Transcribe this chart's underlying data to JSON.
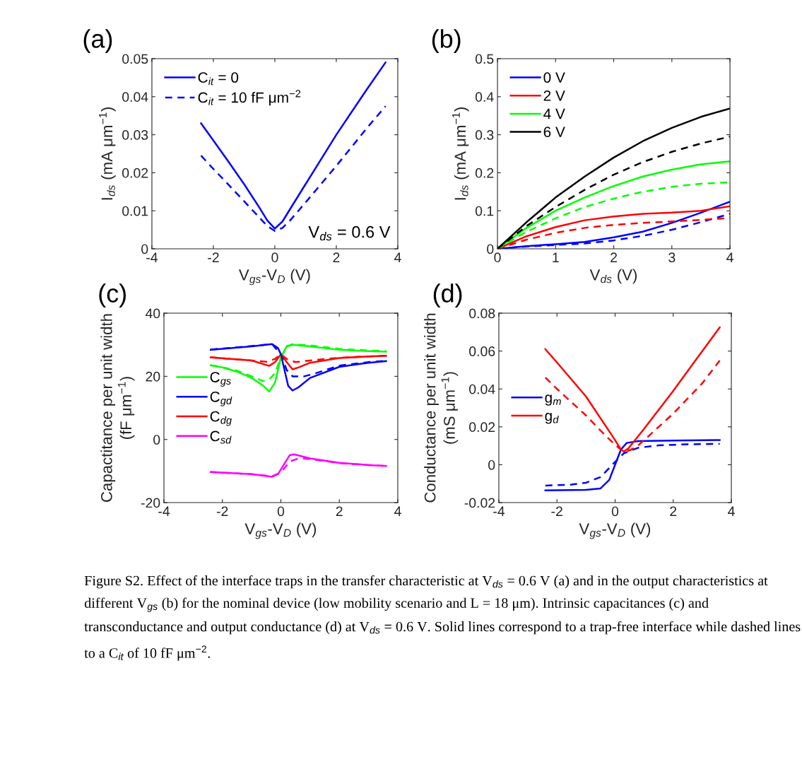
{
  "chart_data": [
    {
      "type": "line",
      "title": "(a)",
      "xlabel": "V$_{gs}$-V$_{D}$ (V)",
      "ylabel": "I$_{ds}$ (mA μm$^{−1}$)",
      "xlim": [
        -4,
        4
      ],
      "xticks": [
        -4,
        -2,
        0,
        2,
        4
      ],
      "ylim": [
        0,
        0.05
      ],
      "yticks": [
        0,
        0.01,
        0.02,
        0.03,
        0.04,
        0.05
      ],
      "legend": "top left",
      "grid": false,
      "annotations": [
        "V$_{ds}$ = 0.6 V"
      ],
      "x": [
        -2.4,
        -2,
        -1.5,
        -1,
        -0.5,
        -0.25,
        0,
        0.25,
        0.5,
        1,
        1.5,
        2,
        2.5,
        3,
        3.6
      ],
      "series": [
        {
          "name": "C$_{it}$ = 0",
          "color": "#0000ff",
          "line_style": "solid",
          "values": [
            0.033,
            0.0285,
            0.0228,
            0.017,
            0.0108,
            0.0075,
            0.0053,
            0.0072,
            0.0105,
            0.017,
            0.0235,
            0.03,
            0.036,
            0.042,
            0.049
          ]
        },
        {
          "name": "C$_{it}$ = 10 fF μm$^{−2}$",
          "color": "#0000ff",
          "line_style": "dashed",
          "values": [
            0.0245,
            0.021,
            0.0168,
            0.0125,
            0.0082,
            0.006,
            0.0047,
            0.0055,
            0.0075,
            0.0122,
            0.017,
            0.0218,
            0.0268,
            0.0318,
            0.0375
          ]
        }
      ]
    },
    {
      "type": "line",
      "title": "(b)",
      "xlabel": "V$_{ds}$ (V)",
      "ylabel": "I$_{ds}$ (mA μm$^{−1}$)",
      "xlim": [
        0,
        4
      ],
      "xticks": [
        0,
        1,
        2,
        3,
        4
      ],
      "ylim": [
        0,
        0.5
      ],
      "yticks": [
        0,
        0.1,
        0.2,
        0.3,
        0.4,
        0.5
      ],
      "legend": "top left",
      "grid": false,
      "x": [
        0,
        0.5,
        1,
        1.5,
        2,
        2.5,
        3,
        3.5,
        4
      ],
      "series": [
        {
          "name": "0 V",
          "color": "#0000ff",
          "line_style": "solid",
          "values": [
            0,
            0.007,
            0.012,
            0.018,
            0.03,
            0.045,
            0.068,
            0.095,
            0.124
          ]
        },
        {
          "name": "2 V",
          "color": "#ff0000",
          "line_style": "solid",
          "values": [
            0,
            0.033,
            0.057,
            0.075,
            0.085,
            0.092,
            0.095,
            0.1,
            0.112
          ]
        },
        {
          "name": "4 V",
          "color": "#00ff00",
          "line_style": "solid",
          "values": [
            0,
            0.055,
            0.1,
            0.135,
            0.165,
            0.19,
            0.208,
            0.222,
            0.23
          ]
        },
        {
          "name": "6 V",
          "color": "#000000",
          "line_style": "solid",
          "values": [
            0,
            0.07,
            0.135,
            0.19,
            0.24,
            0.283,
            0.318,
            0.347,
            0.369
          ]
        },
        {
          "color": "#0000ff",
          "line_style": "dashed",
          "values": [
            0,
            0.006,
            0.01,
            0.014,
            0.022,
            0.034,
            0.05,
            0.07,
            0.092
          ]
        },
        {
          "color": "#ff0000",
          "line_style": "dashed",
          "values": [
            0,
            0.024,
            0.042,
            0.055,
            0.063,
            0.068,
            0.072,
            0.076,
            0.081
          ]
        },
        {
          "color": "#00ff00",
          "line_style": "dashed",
          "values": [
            0,
            0.045,
            0.08,
            0.11,
            0.132,
            0.15,
            0.163,
            0.171,
            0.175
          ]
        },
        {
          "color": "#000000",
          "line_style": "dashed",
          "values": [
            0,
            0.06,
            0.11,
            0.155,
            0.195,
            0.228,
            0.255,
            0.277,
            0.295
          ]
        }
      ]
    },
    {
      "type": "line",
      "title": "(c)",
      "xlabel": "V$_{gs}$-V$_{D}$ (V)",
      "ylabel": "Capactitance per unit width\n(fF μm$^{−1}$)",
      "xlim": [
        -4,
        4
      ],
      "xticks": [
        -4,
        -2,
        0,
        2,
        4
      ],
      "ylim": [
        -20,
        40
      ],
      "yticks": [
        -20,
        0,
        20,
        40
      ],
      "legend": "left",
      "grid": false,
      "series": [
        {
          "name": "C$_{gs}$",
          "color": "#00ff00",
          "line_style": "solid",
          "x": [
            -2.4,
            -2,
            -1.5,
            -1,
            -0.6,
            -0.4,
            -0.2,
            0,
            0.2,
            0.4,
            1,
            2,
            3,
            3.6
          ],
          "values": [
            23.5,
            22.8,
            21.5,
            19.5,
            17,
            15.2,
            18,
            26,
            29.5,
            30,
            29.5,
            28.4,
            28,
            27.8
          ]
        },
        {
          "name": "C$_{gd}$",
          "color": "#0000ff",
          "line_style": "solid",
          "x": [
            -2.4,
            -2,
            -1,
            -0.3,
            -0.1,
            0,
            0.1,
            0.25,
            0.4,
            0.6,
            1,
            2,
            3,
            3.6
          ],
          "values": [
            28.4,
            28.7,
            29.5,
            30.2,
            29,
            27,
            23,
            17,
            15.5,
            16.5,
            19.5,
            23,
            24.3,
            24.8
          ]
        },
        {
          "name": "C$_{dg}$",
          "color": "#ff0000",
          "line_style": "solid",
          "x": [
            -2.4,
            -1,
            -0.4,
            -0.2,
            0,
            0.2,
            0.4,
            0.6,
            1,
            2,
            3,
            3.6
          ],
          "values": [
            26,
            25,
            23.3,
            24.5,
            27,
            24.5,
            22.2,
            22.8,
            24.3,
            25.8,
            26.3,
            26.5
          ]
        },
        {
          "name": "C$_{sd}$",
          "color": "#ff00ff",
          "line_style": "solid",
          "x": [
            -2.4,
            -1,
            -0.3,
            -0.1,
            0.1,
            0.3,
            0.45,
            1,
            2,
            3,
            3.6
          ],
          "values": [
            -10.3,
            -11,
            -11.8,
            -11,
            -8,
            -5,
            -4.7,
            -6,
            -7.4,
            -8.1,
            -8.4
          ]
        },
        {
          "color": "#00ff00",
          "line_style": "dashed",
          "x": [
            -2.4,
            -2,
            -1.5,
            -1,
            -0.6,
            -0.4,
            -0.2,
            0,
            0.2,
            0.4,
            1,
            2,
            3,
            3.6
          ],
          "values": [
            23.5,
            22.9,
            21.8,
            20,
            18.5,
            19,
            21,
            26,
            29.5,
            30.2,
            29.8,
            28.7,
            28.2,
            28
          ]
        },
        {
          "color": "#0000ff",
          "line_style": "dashed",
          "x": [
            -2.4,
            -2,
            -1,
            -0.3,
            0,
            0.2,
            0.4,
            0.8,
            1.2,
            2,
            3,
            3.6
          ],
          "values": [
            28.5,
            28.8,
            29.6,
            30.2,
            27,
            22,
            20,
            20,
            21,
            23.4,
            24.5,
            24.9
          ]
        },
        {
          "color": "#ff0000",
          "line_style": "dashed",
          "x": [
            -2.4,
            -1,
            -0.5,
            -0.2,
            0,
            0.2,
            0.5,
            1,
            2,
            3,
            3.6
          ],
          "values": [
            26,
            25,
            24.6,
            25.5,
            27,
            25.5,
            24.5,
            25,
            25.9,
            26.3,
            26.5
          ]
        },
        {
          "color": "#ff00ff",
          "line_style": "dashed",
          "x": [
            -2.4,
            -1,
            -0.3,
            0,
            0.3,
            0.6,
            1,
            2,
            3,
            3.6
          ],
          "values": [
            -10.3,
            -11,
            -11.6,
            -10.5,
            -7,
            -6,
            -6.2,
            -7.5,
            -8.1,
            -8.4
          ]
        }
      ]
    },
    {
      "type": "line",
      "title": "(d)",
      "xlabel": "V$_{gs}$-V$_{D}$ (V)",
      "ylabel": "Conductance per unit width\n(mS μm$^{−1}$)",
      "xlim": [
        -4,
        4
      ],
      "xticks": [
        -4,
        -2,
        0,
        2,
        4
      ],
      "ylim": [
        -0.02,
        0.08
      ],
      "yticks": [
        -0.02,
        0,
        0.02,
        0.04,
        0.06,
        0.08
      ],
      "legend": "left",
      "grid": false,
      "annotations": [
        "Figure S2. Effect of the interface traps in the transfer characteristic at V$_{ds}$ = 0.6 V (a) and in the output characteristics at different V$_{gs}$ (b) for the nominal device (low mobility scenario and L = 18 μm). Intrinsic capacitances (c) and transconductance and output conductance (d) at V$_{ds}$ = 0.6 V. Solid lines correspond to a trap-free interface while dashed lines to a C$_{it}$ of 10 fF μm$^{−2}$."
      ],
      "series": [
        {
          "name": "g$_{m}$",
          "color": "#0000ff",
          "line_style": "solid",
          "x": [
            -2.4,
            -1,
            -0.5,
            -0.2,
            0,
            0.2,
            0.4,
            0.8,
            2,
            3.6
          ],
          "values": [
            -0.0135,
            -0.0133,
            -0.0125,
            -0.008,
            0,
            0.008,
            0.0115,
            0.0125,
            0.0128,
            0.013
          ]
        },
        {
          "name": "g$_{d}$",
          "color": "#ff0000",
          "line_style": "solid",
          "x": [
            -2.4,
            -2,
            -1,
            0,
            0.2,
            0.3,
            0.45,
            1,
            2,
            3,
            3.6
          ],
          "values": [
            0.061,
            0.054,
            0.036,
            0.013,
            0.008,
            0.007,
            0.0085,
            0.019,
            0.039,
            0.06,
            0.0725
          ]
        },
        {
          "color": "#0000ff",
          "line_style": "dashed",
          "x": [
            -2.4,
            -1.5,
            -1,
            -0.5,
            0,
            0.3,
            0.8,
            1.5,
            2.5,
            3.6
          ],
          "values": [
            -0.011,
            -0.0105,
            -0.0095,
            -0.0065,
            0.0015,
            0.006,
            0.009,
            0.0102,
            0.0108,
            0.011
          ]
        },
        {
          "color": "#ff0000",
          "line_style": "dashed",
          "x": [
            -2.4,
            -2,
            -1,
            -0.5,
            0,
            0.2,
            0.4,
            0.7,
            1,
            2,
            3,
            3.6
          ],
          "values": [
            0.046,
            0.04,
            0.026,
            0.018,
            0.0105,
            0.008,
            0.007,
            0.009,
            0.013,
            0.027,
            0.043,
            0.055
          ]
        }
      ]
    }
  ]
}
